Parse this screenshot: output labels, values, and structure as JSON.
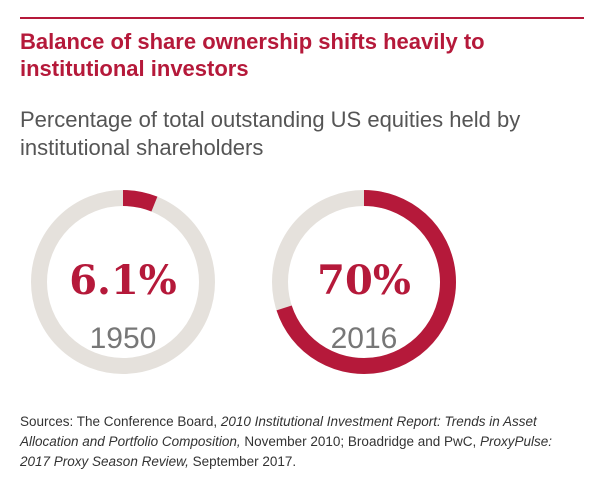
{
  "header": {
    "title": "Balance of share ownership shifts heavily to institutional investors",
    "subtitle": "Percentage of total outstanding US equities held by institutional shareholders"
  },
  "colors": {
    "accent": "#b5193a",
    "track": "#e5e1dc",
    "year_text": "#777777"
  },
  "chart_data": {
    "type": "pie",
    "variant": "progress-ring",
    "items": [
      {
        "year": "1950",
        "value": 6.1,
        "label": "6.1%"
      },
      {
        "year": "2016",
        "value": 70,
        "label": "70%"
      }
    ]
  },
  "source": {
    "prefix": "Sources: The Conference Board, ",
    "title1": "2010 Institutional Investment Report: Trends in Asset Allocation and Portfolio Composition,",
    "middle": " November 2010; Broadridge and PwC, ",
    "title2": "ProxyPulse: 2017 Proxy Season Review,",
    "suffix": " September 2017."
  }
}
